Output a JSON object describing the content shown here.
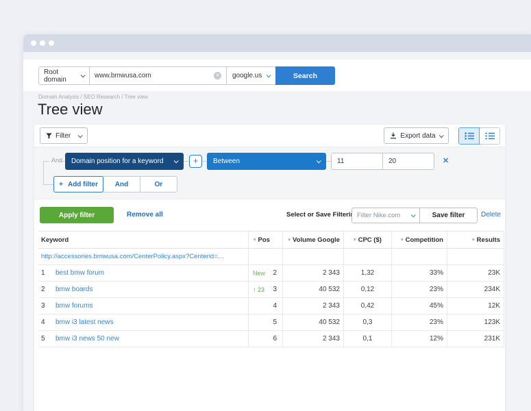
{
  "colors": {
    "accent_blue": "#2f80c8",
    "search_button_blue": "#2e7fd2",
    "field_select_navy": "#174a7e",
    "operator_select_blue": "#1d79c9",
    "apply_green": "#5aa83a",
    "link_blue": "#3786cc",
    "change_green": "#5aa749",
    "titlebar_gray": "#d4dbe7"
  },
  "search_bar": {
    "scope_select_value": "Root domain",
    "domain_input_value": "www.bmwusa.com",
    "region_select_value": "google.us",
    "search_button_label": "Search"
  },
  "breadcrumb": "Domain Analysis / SEO Research / Tree view",
  "page_title": "Tree view",
  "toolbar": {
    "filter_button_label": "Filter",
    "export_button_label": "Export data"
  },
  "filter_builder": {
    "connector_label": "And",
    "field_select_value": "Domain position for a keyword",
    "operator_select_value": "Between",
    "value_from": "11",
    "value_to": "20",
    "add_filter_label": "Add filter",
    "and_button_label": "And",
    "or_button_label": "Or"
  },
  "filter_actions": {
    "apply_label": "Apply filter",
    "remove_all_label": "Remove all",
    "saved_filter_label": "Select or Save Filtering:",
    "saved_filter_value": "Filter Nike.com",
    "save_filter_label": "Save filter",
    "delete_label": "Delete"
  },
  "table": {
    "columns": [
      {
        "label": "Keyword",
        "sortable": false
      },
      {
        "label": "Pos",
        "sortable": true
      },
      {
        "label": "Volume Google",
        "sortable": true
      },
      {
        "label": "CPC ($)",
        "sortable": true
      },
      {
        "label": "Competition",
        "sortable": true
      },
      {
        "label": "Results",
        "sortable": true
      }
    ],
    "url_row": "http://accessories.bmwusa.com/CenterPolicy.aspx?Centerid=…",
    "rows": [
      {
        "num": "1",
        "keyword": "best bmw forum",
        "change": "New",
        "change_type": "new",
        "pos": "2",
        "volume": "2 343",
        "cpc": "1,32",
        "competition": "33%",
        "results": "23K"
      },
      {
        "num": "2",
        "keyword": "bmw boards",
        "change": "23",
        "change_type": "up",
        "pos": "3",
        "volume": "40 532",
        "cpc": "0,12",
        "competition": "23%",
        "results": "234K"
      },
      {
        "num": "3",
        "keyword": "bmw forums",
        "change": "",
        "change_type": "none",
        "pos": "4",
        "volume": "2 343",
        "cpc": "0,42",
        "competition": "45%",
        "results": "12K"
      },
      {
        "num": "4",
        "keyword": "bmw i3 latest news",
        "change": "",
        "change_type": "none",
        "pos": "5",
        "volume": "40 532",
        "cpc": "0,3",
        "competition": "23%",
        "results": "123K"
      },
      {
        "num": "5",
        "keyword": "bmw i3 news 50 new",
        "change": "",
        "change_type": "none",
        "pos": "6",
        "volume": "2 343",
        "cpc": "0,1",
        "competition": "12%",
        "results": "231K"
      }
    ]
  }
}
